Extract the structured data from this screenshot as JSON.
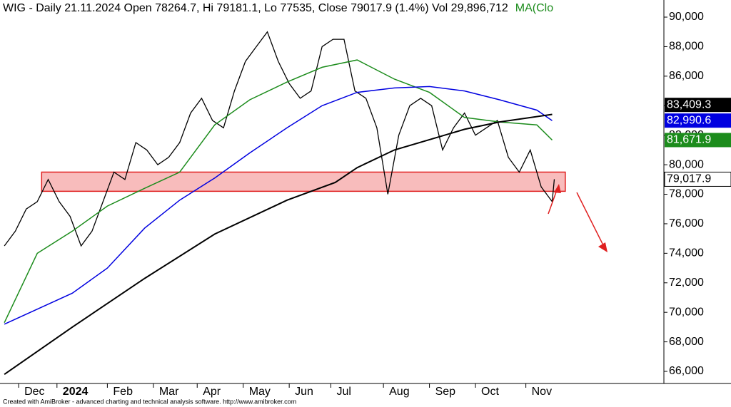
{
  "chart_data": {
    "type": "line",
    "title": "WIG - Daily 21.11.2024 Open 78264.7, Hi 79181.1, Lo 77535, Close 79017.9 (1.4%) Vol 29,896,712",
    "ma_label": "MA(Clo",
    "footer": "Created with AmiBroker - advanced charting and technical analysis software. http://www.amibroker.com",
    "xlim": [
      -2,
      301
    ],
    "ylim": [
      65180,
      91160
    ],
    "yticks": [
      {
        "value": 66000,
        "label": "66,000"
      },
      {
        "value": 68000,
        "label": "68,000"
      },
      {
        "value": 70000,
        "label": "70,000"
      },
      {
        "value": 72000,
        "label": "72,000"
      },
      {
        "value": 74000,
        "label": "74,000"
      },
      {
        "value": 76000,
        "label": "76,000"
      },
      {
        "value": 78000,
        "label": "78,000"
      },
      {
        "value": 80000,
        "label": "80,000"
      },
      {
        "value": 82000,
        "label": "82,000"
      },
      {
        "value": 84000,
        "label": "84,000"
      },
      {
        "value": 86000,
        "label": "86,000"
      },
      {
        "value": 88000,
        "label": "88,000"
      },
      {
        "value": 90000,
        "label": "90,000"
      }
    ],
    "xticks": [
      {
        "value": 6.5,
        "label": "Dec"
      },
      {
        "value": 24,
        "label": "2024"
      },
      {
        "value": 47,
        "label": "Feb"
      },
      {
        "value": 68,
        "label": "Mar"
      },
      {
        "value": 88,
        "label": "Apr"
      },
      {
        "value": 109,
        "label": "May"
      },
      {
        "value": 130,
        "label": "Jun"
      },
      {
        "value": 149,
        "label": "Jul"
      },
      {
        "value": 173,
        "label": "Aug"
      },
      {
        "value": 194,
        "label": "Sep"
      },
      {
        "value": 215,
        "label": "Oct"
      },
      {
        "value": 238,
        "label": "Nov"
      }
    ],
    "zone": {
      "from": 78200,
      "to": 79500,
      "x": [
        17,
        256
      ],
      "color": "#f8bcbc",
      "border": "#e02020"
    },
    "series": [
      {
        "name": "WIG",
        "color": "#000000",
        "width": 1.3,
        "x": [
          0,
          5,
          10,
          15,
          20,
          25,
          30,
          35,
          40,
          45,
          50,
          55,
          60,
          65,
          70,
          75,
          80,
          85,
          90,
          95,
          100,
          105,
          110,
          115,
          120,
          125,
          130,
          135,
          140,
          145,
          150,
          155,
          160,
          165,
          170,
          175,
          180,
          185,
          190,
          195,
          200,
          205,
          210,
          215,
          220,
          225,
          230,
          235,
          240,
          245,
          250,
          251
        ],
        "values": [
          74500,
          75500,
          77000,
          77500,
          79000,
          77500,
          76500,
          74500,
          75500,
          77500,
          79500,
          79000,
          81500,
          81000,
          80000,
          80500,
          81500,
          83500,
          84500,
          83000,
          82500,
          85000,
          87000,
          88000,
          89000,
          87000,
          85500,
          84500,
          85000,
          88000,
          88500,
          88500,
          85000,
          84500,
          82500,
          78000,
          82000,
          84000,
          84500,
          84000,
          81000,
          82500,
          83500,
          82000,
          82500,
          83000,
          80500,
          79500,
          81000,
          78500,
          77500,
          79017.9
        ],
        "value_labels": [
          null,
          null,
          null,
          null,
          null,
          null,
          null,
          null,
          null,
          null,
          null,
          null,
          null,
          null,
          null,
          null,
          null,
          null,
          null,
          null,
          null,
          null,
          null,
          null,
          null,
          null,
          null,
          null,
          null,
          null,
          null,
          null,
          null,
          null,
          null,
          null,
          null,
          null,
          null,
          null,
          null,
          null,
          null,
          null,
          null,
          null,
          null,
          null,
          null,
          null,
          null,
          "79,017.9"
        ],
        "box": "#ffffff",
        "box_text": "#000000"
      },
      {
        "name": "MA green",
        "color": "#1c8c1c",
        "width": 1.5,
        "x": [
          0,
          15,
          31,
          47,
          64,
          80,
          96,
          112,
          129,
          145,
          161,
          178,
          194,
          210,
          226,
          243,
          250
        ],
        "values": [
          69300,
          74000,
          75500,
          77200,
          78400,
          79500,
          82700,
          84400,
          85600,
          86600,
          87100,
          85800,
          84900,
          83200,
          82900,
          82700,
          81671.9
        ],
        "value_labels": [
          null,
          null,
          null,
          null,
          null,
          null,
          null,
          null,
          null,
          null,
          null,
          null,
          null,
          null,
          null,
          null,
          "81,671.9"
        ],
        "box": "#1c8c1c",
        "box_text": "#ffffff"
      },
      {
        "name": "MA blue",
        "color": "#0000e0",
        "width": 1.5,
        "x": [
          0,
          31,
          47,
          64,
          80,
          96,
          112,
          129,
          145,
          161,
          178,
          194,
          210,
          226,
          243,
          250
        ],
        "values": [
          69200,
          71300,
          73000,
          75700,
          77600,
          79100,
          80800,
          82500,
          84000,
          84900,
          85200,
          85300,
          85000,
          84400,
          83700,
          82990.6
        ],
        "value_labels": [
          null,
          null,
          null,
          null,
          null,
          null,
          null,
          null,
          null,
          null,
          null,
          null,
          null,
          null,
          null,
          "82,990.6"
        ],
        "box": "#0000e0",
        "box_text": "#ffffff"
      },
      {
        "name": "MA black",
        "color": "#000000",
        "width": 2,
        "x": [
          0,
          31,
          64,
          96,
          129,
          151,
          161,
          178,
          194,
          210,
          226,
          250
        ],
        "values": [
          65800,
          69000,
          72300,
          75300,
          77600,
          78800,
          79800,
          81000,
          81700,
          82400,
          82900,
          83409.3
        ],
        "value_labels": [
          null,
          null,
          null,
          null,
          null,
          null,
          null,
          null,
          null,
          null,
          null,
          "83,409.3"
        ],
        "box": "#000000",
        "box_text": "#ffffff"
      }
    ]
  }
}
